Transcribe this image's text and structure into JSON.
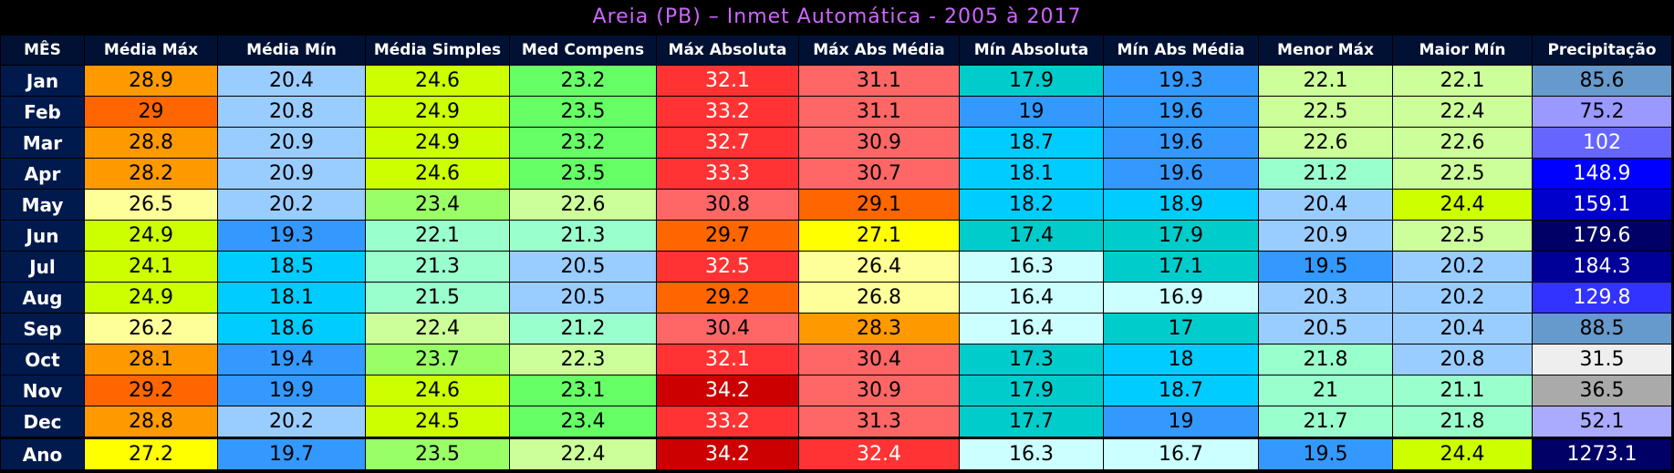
{
  "title": "Areia (PB) – Inmet Automática - 2005 à 2017",
  "table": {
    "header": [
      "MÊS",
      "Média Máx",
      "Média Mín",
      "Média Simples",
      "Med Compens",
      "Máx Absoluta",
      "Máx Abs Média",
      "Mín Absoluta",
      "Mín Abs Média",
      "Menor Máx",
      "Maior Mín",
      "Precipitação"
    ],
    "rows": [
      {
        "label": "Jan",
        "values": [
          28.9,
          20.4,
          24.6,
          23.2,
          32.1,
          31.1,
          17.9,
          19.3,
          22.1,
          22.1,
          85.6
        ],
        "colors": [
          "#ff9900",
          "#99ccff",
          "#ccff00",
          "#66ff66",
          "#ff3333",
          "#ff6666",
          "#00cccc",
          "#3399ff",
          "#ccff99",
          "#ccff99",
          "#6699cc"
        ]
      },
      {
        "label": "Feb",
        "values": [
          29,
          20.8,
          24.9,
          23.5,
          33.2,
          31.1,
          19,
          19.6,
          22.5,
          22.4,
          75.2
        ],
        "colors": [
          "#ff6600",
          "#99ccff",
          "#ccff00",
          "#66ff66",
          "#ff3333",
          "#ff6666",
          "#3399ff",
          "#3399ff",
          "#ccff99",
          "#ccff99",
          "#9999ff"
        ]
      },
      {
        "label": "Mar",
        "values": [
          28.8,
          20.9,
          24.9,
          23.2,
          32.7,
          30.9,
          18.7,
          19.6,
          22.6,
          22.6,
          102
        ],
        "colors": [
          "#ff9900",
          "#99ccff",
          "#ccff00",
          "#66ff66",
          "#ff3333",
          "#ff6666",
          "#00ccff",
          "#3399ff",
          "#ccff99",
          "#ccff99",
          "#6666ff"
        ]
      },
      {
        "label": "Apr",
        "values": [
          28.2,
          20.9,
          24.6,
          23.5,
          33.3,
          30.7,
          18.1,
          19.6,
          21.2,
          22.5,
          148.9
        ],
        "colors": [
          "#ff9900",
          "#99ccff",
          "#ccff00",
          "#66ff66",
          "#ff3333",
          "#ff6666",
          "#00ccff",
          "#3399ff",
          "#99ffcc",
          "#ccff99",
          "#0000ff"
        ]
      },
      {
        "label": "May",
        "values": [
          26.5,
          20.2,
          23.4,
          22.6,
          30.8,
          29.1,
          18.2,
          18.9,
          20.4,
          24.4,
          159.1
        ],
        "colors": [
          "#ffff99",
          "#99ccff",
          "#99ff66",
          "#ccff99",
          "#ff6666",
          "#ff6600",
          "#00ccff",
          "#00ccff",
          "#99ccff",
          "#ccff00",
          "#0000cc"
        ]
      },
      {
        "label": "Jun",
        "values": [
          24.9,
          19.3,
          22.1,
          21.3,
          29.7,
          27.1,
          17.4,
          17.9,
          20.9,
          22.5,
          179.6
        ],
        "colors": [
          "#ccff00",
          "#3399ff",
          "#99ffcc",
          "#99ffcc",
          "#ff6600",
          "#ffff00",
          "#00cccc",
          "#00cccc",
          "#99ccff",
          "#ccff99",
          "#000066"
        ]
      },
      {
        "label": "Jul",
        "values": [
          24.1,
          18.5,
          21.3,
          20.5,
          32.5,
          26.4,
          16.3,
          17.1,
          19.5,
          20.2,
          184.3
        ],
        "colors": [
          "#ccff00",
          "#00ccff",
          "#99ffcc",
          "#99ccff",
          "#ff3333",
          "#ffff99",
          "#ccffff",
          "#00cccc",
          "#3399ff",
          "#99ccff",
          "#000099"
        ]
      },
      {
        "label": "Aug",
        "values": [
          24.9,
          18.1,
          21.5,
          20.5,
          29.2,
          26.8,
          16.4,
          16.9,
          20.3,
          20.2,
          129.8
        ],
        "colors": [
          "#ccff00",
          "#00ccff",
          "#99ffcc",
          "#99ccff",
          "#ff6600",
          "#ffff99",
          "#ccffff",
          "#ccffff",
          "#99ccff",
          "#99ccff",
          "#3333ff"
        ]
      },
      {
        "label": "Sep",
        "values": [
          26.2,
          18.6,
          22.4,
          21.2,
          30.4,
          28.3,
          16.4,
          17,
          20.5,
          20.4,
          88.5
        ],
        "colors": [
          "#ffff99",
          "#00ccff",
          "#ccff99",
          "#99ffcc",
          "#ff6666",
          "#ff9900",
          "#ccffff",
          "#00cccc",
          "#99ccff",
          "#99ccff",
          "#6699cc"
        ]
      },
      {
        "label": "Oct",
        "values": [
          28.1,
          19.4,
          23.7,
          22.3,
          32.1,
          30.4,
          17.3,
          18,
          21.8,
          20.8,
          31.5
        ],
        "colors": [
          "#ff9900",
          "#3399ff",
          "#99ff66",
          "#ccff99",
          "#ff3333",
          "#ff6666",
          "#00cccc",
          "#00ccff",
          "#99ffcc",
          "#99ccff",
          "#eeeeee"
        ]
      },
      {
        "label": "Nov",
        "values": [
          29.2,
          19.9,
          24.6,
          23.1,
          34.2,
          30.9,
          17.9,
          18.7,
          21,
          21.1,
          36.5
        ],
        "colors": [
          "#ff6600",
          "#3399ff",
          "#ccff00",
          "#66ff66",
          "#cc0000",
          "#ff6666",
          "#00cccc",
          "#00ccff",
          "#99ffcc",
          "#99ffcc",
          "#aaaaaa"
        ]
      },
      {
        "label": "Dec",
        "values": [
          28.8,
          20.2,
          24.5,
          23.4,
          33.2,
          31.3,
          17.7,
          19,
          21.7,
          21.8,
          52.1
        ],
        "colors": [
          "#ff9900",
          "#99ccff",
          "#ccff00",
          "#66ff66",
          "#ff3333",
          "#ff6666",
          "#00cccc",
          "#3399ff",
          "#99ffcc",
          "#99ffcc",
          "#aaaaff"
        ]
      },
      {
        "label": "Ano",
        "values": [
          27.2,
          19.7,
          23.5,
          22.4,
          34.2,
          32.4,
          16.3,
          16.7,
          19.5,
          24.4,
          1273.1
        ],
        "colors": [
          "#ffff00",
          "#3399ff",
          "#99ff66",
          "#ccff99",
          "#cc0000",
          "#ff3333",
          "#ccffff",
          "#ccffff",
          "#3399ff",
          "#ccff00",
          "#000066"
        ]
      }
    ]
  }
}
